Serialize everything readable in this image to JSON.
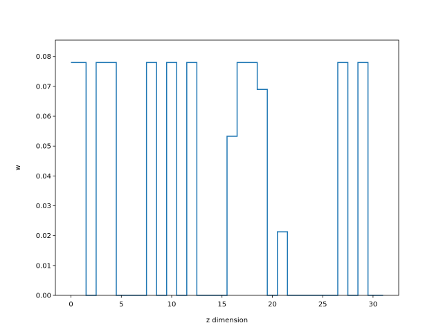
{
  "chart_data": {
    "type": "line",
    "drawstyle": "steps-mid",
    "title": "",
    "xlabel": "z dimension",
    "ylabel": "w",
    "xlim": [
      -1.55,
      32.55
    ],
    "ylim": [
      0,
      0.0855
    ],
    "xticks": [
      0,
      5,
      10,
      15,
      20,
      25,
      30
    ],
    "yticks": [
      0.0,
      0.01,
      0.02,
      0.03,
      0.04,
      0.05,
      0.06,
      0.07,
      0.08
    ],
    "grid": false,
    "line_color": "#1f77b4",
    "x": [
      0,
      1,
      2,
      3,
      4,
      5,
      6,
      7,
      8,
      9,
      10,
      11,
      12,
      13,
      14,
      15,
      16,
      17,
      18,
      19,
      20,
      21,
      22,
      23,
      24,
      25,
      26,
      27,
      28,
      29,
      30,
      31
    ],
    "y": [
      0.078,
      0.078,
      0,
      0.078,
      0.078,
      0,
      0,
      0,
      0.078,
      0,
      0.078,
      0,
      0.078,
      0,
      0,
      0,
      0.0533,
      0.078,
      0.078,
      0.069,
      0,
      0.0213,
      0,
      0,
      0,
      0,
      0,
      0.078,
      0,
      0.078,
      0,
      0
    ]
  }
}
